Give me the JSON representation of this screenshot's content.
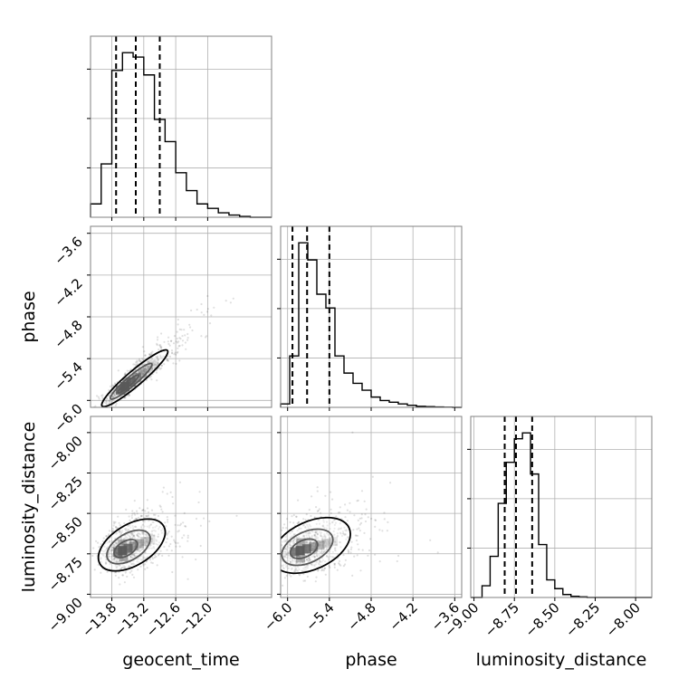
{
  "chart_data": {
    "type": "corner",
    "parameters": [
      "geocent_time",
      "phase",
      "luminosity_distance"
    ],
    "grid": true,
    "one_d": [
      {
        "parameter": "geocent_time",
        "xlim": [
          -14.2,
          -10.8
        ],
        "bins_x0": -14.2,
        "bin_width": 0.2,
        "counts": [
          3,
          12,
          33,
          37,
          36,
          32,
          22,
          17,
          10,
          6,
          3,
          2,
          1,
          0.5,
          0.2,
          0,
          0
        ],
        "quantile_lines": [
          -13.72,
          -13.35,
          -12.9
        ],
        "xticks": [
          -13.8,
          -13.2,
          -12.6,
          -12.0
        ],
        "xtick_labels": [
          "−13.8",
          "−13.2",
          "−12.6",
          "−12.0"
        ]
      },
      {
        "parameter": "phase",
        "xlim": [
          -6.1,
          -3.5
        ],
        "bins_x0": -6.1,
        "bin_width": 0.13,
        "counts": [
          1,
          15,
          48,
          43,
          33,
          29,
          15,
          10,
          7,
          5,
          3,
          2,
          1.5,
          1,
          0.6,
          0.3,
          0.2,
          0.1,
          0.05,
          0
        ],
        "quantile_lines": [
          -5.93,
          -5.72,
          -5.4
        ],
        "xticks": [
          -6.0,
          -5.4,
          -4.8,
          -4.2,
          -3.6
        ],
        "xtick_labels": [
          "−6.0",
          "−5.4",
          "−4.8",
          "−4.2",
          "−3.6"
        ]
      },
      {
        "parameter": "luminosity_distance",
        "xlim": [
          -9.02,
          -7.9
        ],
        "bins_x0": -9.0,
        "bin_width": 0.05,
        "counts": [
          0,
          2,
          7,
          16,
          23,
          27,
          28,
          21,
          9,
          3,
          1.5,
          0.5,
          0.2,
          0.1,
          0,
          0,
          0,
          0
        ],
        "quantile_lines": [
          -8.81,
          -8.74,
          -8.64
        ],
        "xticks": [
          -9.0,
          -8.75,
          -8.5,
          -8.25,
          -8.0
        ],
        "xtick_labels": [
          "−9.00",
          "−8.75",
          "−8.50",
          "−8.25",
          "−8.00"
        ]
      }
    ],
    "two_d": [
      {
        "x_param": "geocent_time",
        "y_param": "phase",
        "xlim": [
          -14.2,
          -10.8
        ],
        "ylim": [
          -6.1,
          -3.5
        ],
        "center": [
          -13.55,
          -5.8
        ],
        "sigma_major": 0.38,
        "sigma_minor": 0.055,
        "slope": 0.65,
        "contour_scales": [
          0.6,
          1.2,
          1.9
        ]
      },
      {
        "x_param": "geocent_time",
        "y_param": "luminosity_distance",
        "xlim": [
          -14.2,
          -10.8
        ],
        "ylim": [
          -9.02,
          -7.9
        ],
        "center": [
          -13.6,
          -8.73
        ],
        "sigma_major": 0.35,
        "sigma_minor": 0.06,
        "slope": 0.2,
        "contour_scales": [
          0.7,
          1.3,
          2.0
        ]
      },
      {
        "x_param": "phase",
        "y_param": "luminosity_distance",
        "xlim": [
          -6.1,
          -3.5
        ],
        "ylim": [
          -9.02,
          -7.9
        ],
        "center": [
          -5.82,
          -8.73
        ],
        "sigma_major": 0.32,
        "sigma_minor": 0.07,
        "slope": 0.2,
        "contour_scales": [
          0.7,
          1.3,
          2.0
        ]
      }
    ],
    "y_axes": [
      {
        "row": 1,
        "parameter": "phase",
        "label": "phase",
        "yticks": [
          -6.0,
          -5.4,
          -4.8,
          -4.2,
          -3.6
        ],
        "ytick_labels": [
          "−6.0",
          "−5.4",
          "−4.8",
          "−4.2",
          "−3.6"
        ]
      },
      {
        "row": 2,
        "parameter": "luminosity_distance",
        "label": "luminosity_distance",
        "yticks": [
          -9.0,
          -8.75,
          -8.5,
          -8.25,
          -8.0
        ],
        "ytick_labels": [
          "−9.00",
          "−8.75",
          "−8.50",
          "−8.25",
          "−8.00"
        ]
      }
    ],
    "x_axis_labels": [
      "geocent_time",
      "phase",
      "luminosity_distance"
    ]
  }
}
